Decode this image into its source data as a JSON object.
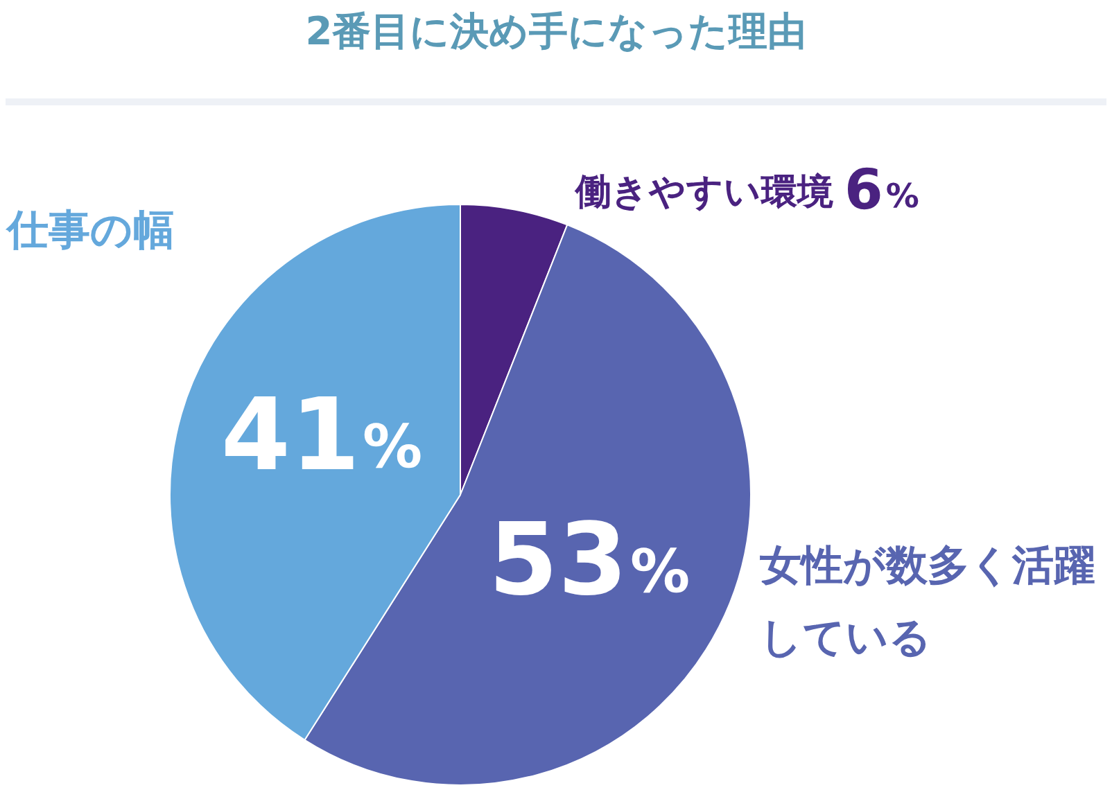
{
  "chart_data": {
    "type": "pie",
    "title": "2番目に決め手になった理由",
    "categories": [
      "働きやすい環境",
      "女性が数多く活躍している",
      "仕事の幅"
    ],
    "values": [
      6,
      53,
      41
    ],
    "value_labels": [
      "6%",
      "53%",
      "41%"
    ],
    "colors": [
      "#4a2280",
      "#5865b0",
      "#64a8dc"
    ],
    "legend": false
  }
}
